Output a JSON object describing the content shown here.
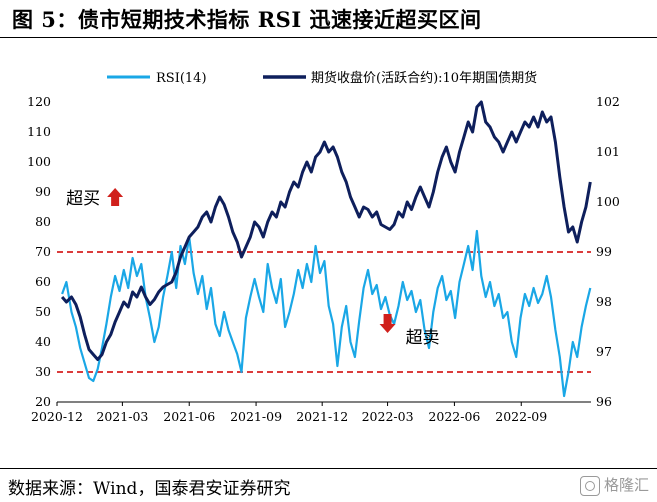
{
  "title": "图 5：债市短期技术指标 RSI 迅速接近超买区间",
  "source": "数据来源：Wind，国泰君安证券研究",
  "watermark": "格隆汇",
  "colors": {
    "rsi": "#1AA7E6",
    "futures": "#0E1F5C",
    "threshold": "#D62020",
    "arrow": "#D0201C"
  },
  "chart_data": {
    "type": "line",
    "x_ticks": [
      "2020-12",
      "2021-03",
      "2021-06",
      "2021-09",
      "2021-12",
      "2022-03",
      "2022-06",
      "2022-09"
    ],
    "x_range": [
      "2020-12-15",
      "2022-12-20"
    ],
    "left_axis": {
      "range": [
        20,
        120
      ],
      "ticks": [
        20,
        30,
        40,
        50,
        60,
        70,
        80,
        90,
        100,
        110,
        120
      ]
    },
    "right_axis": {
      "range": [
        96,
        102
      ],
      "ticks": [
        96,
        97,
        98,
        99,
        100,
        101,
        102
      ]
    },
    "thresholds": [
      70,
      30
    ],
    "legend_position": "top",
    "annotations": [
      {
        "text": "超买",
        "arrow": "up",
        "x": "2021-03-05",
        "y": 88
      },
      {
        "text": "超卖",
        "arrow": "down",
        "x": "2022-03-15",
        "y": 47
      }
    ],
    "series": [
      {
        "name": "RSI(14)",
        "axis": "left",
        "points": [
          [
            "2020-12-22",
            56
          ],
          [
            "2020-12-28",
            60
          ],
          [
            "2021-01-04",
            50
          ],
          [
            "2021-01-10",
            45
          ],
          [
            "2021-01-16",
            38
          ],
          [
            "2021-01-22",
            33
          ],
          [
            "2021-01-28",
            28
          ],
          [
            "2021-02-03",
            27
          ],
          [
            "2021-02-09",
            31
          ],
          [
            "2021-02-15",
            38
          ],
          [
            "2021-02-21",
            46
          ],
          [
            "2021-02-27",
            55
          ],
          [
            "2021-03-05",
            62
          ],
          [
            "2021-03-11",
            57
          ],
          [
            "2021-03-17",
            64
          ],
          [
            "2021-03-23",
            58
          ],
          [
            "2021-03-29",
            68
          ],
          [
            "2021-04-04",
            62
          ],
          [
            "2021-04-10",
            66
          ],
          [
            "2021-04-16",
            55
          ],
          [
            "2021-04-22",
            48
          ],
          [
            "2021-04-28",
            40
          ],
          [
            "2021-05-04",
            45
          ],
          [
            "2021-05-10",
            55
          ],
          [
            "2021-05-16",
            62
          ],
          [
            "2021-05-22",
            70
          ],
          [
            "2021-05-28",
            58
          ],
          [
            "2021-06-03",
            72
          ],
          [
            "2021-06-09",
            66
          ],
          [
            "2021-06-15",
            75
          ],
          [
            "2021-06-21",
            63
          ],
          [
            "2021-06-27",
            56
          ],
          [
            "2021-07-03",
            62
          ],
          [
            "2021-07-09",
            51
          ],
          [
            "2021-07-15",
            58
          ],
          [
            "2021-07-21",
            46
          ],
          [
            "2021-07-27",
            42
          ],
          [
            "2021-08-02",
            50
          ],
          [
            "2021-08-08",
            44
          ],
          [
            "2021-08-14",
            40
          ],
          [
            "2021-08-20",
            36
          ],
          [
            "2021-08-26",
            30
          ],
          [
            "2021-09-01",
            48
          ],
          [
            "2021-09-07",
            55
          ],
          [
            "2021-09-13",
            61
          ],
          [
            "2021-09-19",
            55
          ],
          [
            "2021-09-25",
            50
          ],
          [
            "2021-10-01",
            66
          ],
          [
            "2021-10-07",
            58
          ],
          [
            "2021-10-13",
            53
          ],
          [
            "2021-10-19",
            61
          ],
          [
            "2021-10-25",
            45
          ],
          [
            "2021-10-31",
            50
          ],
          [
            "2021-11-06",
            56
          ],
          [
            "2021-11-12",
            64
          ],
          [
            "2021-11-18",
            58
          ],
          [
            "2021-11-24",
            66
          ],
          [
            "2021-11-30",
            60
          ],
          [
            "2021-12-06",
            72
          ],
          [
            "2021-12-12",
            63
          ],
          [
            "2021-12-18",
            67
          ],
          [
            "2021-12-24",
            52
          ],
          [
            "2021-12-30",
            46
          ],
          [
            "2022-01-05",
            32
          ],
          [
            "2022-01-11",
            45
          ],
          [
            "2022-01-17",
            52
          ],
          [
            "2022-01-23",
            40
          ],
          [
            "2022-01-29",
            35
          ],
          [
            "2022-02-04",
            47
          ],
          [
            "2022-02-10",
            58
          ],
          [
            "2022-02-16",
            64
          ],
          [
            "2022-02-22",
            56
          ],
          [
            "2022-02-28",
            59
          ],
          [
            "2022-03-06",
            51
          ],
          [
            "2022-03-12",
            55
          ],
          [
            "2022-03-18",
            49
          ],
          [
            "2022-03-24",
            46
          ],
          [
            "2022-03-30",
            52
          ],
          [
            "2022-04-05",
            60
          ],
          [
            "2022-04-11",
            54
          ],
          [
            "2022-04-17",
            57
          ],
          [
            "2022-04-23",
            50
          ],
          [
            "2022-04-29",
            54
          ],
          [
            "2022-05-05",
            44
          ],
          [
            "2022-05-11",
            38
          ],
          [
            "2022-05-17",
            50
          ],
          [
            "2022-05-23",
            58
          ],
          [
            "2022-05-29",
            62
          ],
          [
            "2022-06-04",
            54
          ],
          [
            "2022-06-10",
            57
          ],
          [
            "2022-06-16",
            48
          ],
          [
            "2022-06-22",
            60
          ],
          [
            "2022-06-28",
            66
          ],
          [
            "2022-07-04",
            72
          ],
          [
            "2022-07-10",
            64
          ],
          [
            "2022-07-16",
            77
          ],
          [
            "2022-07-22",
            62
          ],
          [
            "2022-07-28",
            55
          ],
          [
            "2022-08-03",
            60
          ],
          [
            "2022-08-09",
            52
          ],
          [
            "2022-08-15",
            56
          ],
          [
            "2022-08-21",
            48
          ],
          [
            "2022-08-27",
            50
          ],
          [
            "2022-09-02",
            40
          ],
          [
            "2022-09-08",
            35
          ],
          [
            "2022-09-14",
            48
          ],
          [
            "2022-09-20",
            56
          ],
          [
            "2022-09-26",
            52
          ],
          [
            "2022-10-02",
            58
          ],
          [
            "2022-10-08",
            53
          ],
          [
            "2022-10-14",
            56
          ],
          [
            "2022-10-20",
            62
          ],
          [
            "2022-10-26",
            55
          ],
          [
            "2022-11-01",
            44
          ],
          [
            "2022-11-07",
            35
          ],
          [
            "2022-11-13",
            22
          ],
          [
            "2022-11-19",
            30
          ],
          [
            "2022-11-25",
            40
          ],
          [
            "2022-12-01",
            35
          ],
          [
            "2022-12-07",
            45
          ],
          [
            "2022-12-13",
            52
          ],
          [
            "2022-12-19",
            58
          ]
        ]
      },
      {
        "name": "期货收盘价(活跃合约):10年期国债期货",
        "axis": "right",
        "points": [
          [
            "2020-12-22",
            98.1
          ],
          [
            "2020-12-28",
            98.0
          ],
          [
            "2021-01-04",
            98.1
          ],
          [
            "2021-01-10",
            97.95
          ],
          [
            "2021-01-16",
            97.7
          ],
          [
            "2021-01-22",
            97.35
          ],
          [
            "2021-01-28",
            97.05
          ],
          [
            "2021-02-03",
            96.95
          ],
          [
            "2021-02-09",
            96.85
          ],
          [
            "2021-02-15",
            96.95
          ],
          [
            "2021-02-21",
            97.2
          ],
          [
            "2021-02-27",
            97.35
          ],
          [
            "2021-03-05",
            97.6
          ],
          [
            "2021-03-11",
            97.8
          ],
          [
            "2021-03-17",
            98.0
          ],
          [
            "2021-03-23",
            97.9
          ],
          [
            "2021-03-29",
            98.2
          ],
          [
            "2021-04-04",
            98.1
          ],
          [
            "2021-04-10",
            98.3
          ],
          [
            "2021-04-16",
            98.1
          ],
          [
            "2021-04-22",
            97.95
          ],
          [
            "2021-04-28",
            98.05
          ],
          [
            "2021-05-04",
            98.2
          ],
          [
            "2021-05-10",
            98.3
          ],
          [
            "2021-05-16",
            98.35
          ],
          [
            "2021-05-22",
            98.4
          ],
          [
            "2021-05-28",
            98.6
          ],
          [
            "2021-06-03",
            98.9
          ],
          [
            "2021-06-09",
            99.1
          ],
          [
            "2021-06-15",
            99.3
          ],
          [
            "2021-06-21",
            99.4
          ],
          [
            "2021-06-27",
            99.5
          ],
          [
            "2021-07-03",
            99.7
          ],
          [
            "2021-07-09",
            99.8
          ],
          [
            "2021-07-15",
            99.6
          ],
          [
            "2021-07-21",
            99.9
          ],
          [
            "2021-07-27",
            100.1
          ],
          [
            "2021-08-02",
            99.95
          ],
          [
            "2021-08-08",
            99.7
          ],
          [
            "2021-08-14",
            99.4
          ],
          [
            "2021-08-20",
            99.2
          ],
          [
            "2021-08-26",
            98.9
          ],
          [
            "2021-09-01",
            99.1
          ],
          [
            "2021-09-07",
            99.3
          ],
          [
            "2021-09-13",
            99.6
          ],
          [
            "2021-09-19",
            99.5
          ],
          [
            "2021-09-25",
            99.3
          ],
          [
            "2021-10-01",
            99.6
          ],
          [
            "2021-10-07",
            99.8
          ],
          [
            "2021-10-13",
            99.7
          ],
          [
            "2021-10-19",
            100.0
          ],
          [
            "2021-10-25",
            99.9
          ],
          [
            "2021-10-31",
            100.2
          ],
          [
            "2021-11-06",
            100.4
          ],
          [
            "2021-11-12",
            100.3
          ],
          [
            "2021-11-18",
            100.6
          ],
          [
            "2021-11-24",
            100.8
          ],
          [
            "2021-11-30",
            100.6
          ],
          [
            "2021-12-06",
            100.9
          ],
          [
            "2021-12-12",
            101.0
          ],
          [
            "2021-12-18",
            101.2
          ],
          [
            "2021-12-24",
            101.0
          ],
          [
            "2021-12-30",
            101.1
          ],
          [
            "2022-01-05",
            100.9
          ],
          [
            "2022-01-11",
            100.6
          ],
          [
            "2022-01-17",
            100.4
          ],
          [
            "2022-01-23",
            100.1
          ],
          [
            "2022-01-29",
            99.9
          ],
          [
            "2022-02-04",
            99.7
          ],
          [
            "2022-02-10",
            99.9
          ],
          [
            "2022-02-16",
            99.85
          ],
          [
            "2022-02-22",
            99.7
          ],
          [
            "2022-02-28",
            99.8
          ],
          [
            "2022-03-06",
            99.55
          ],
          [
            "2022-03-12",
            99.5
          ],
          [
            "2022-03-18",
            99.45
          ],
          [
            "2022-03-24",
            99.55
          ],
          [
            "2022-03-30",
            99.8
          ],
          [
            "2022-04-05",
            99.7
          ],
          [
            "2022-04-11",
            100.0
          ],
          [
            "2022-04-17",
            99.85
          ],
          [
            "2022-04-23",
            100.1
          ],
          [
            "2022-04-29",
            100.3
          ],
          [
            "2022-05-05",
            100.1
          ],
          [
            "2022-05-11",
            99.9
          ],
          [
            "2022-05-17",
            100.2
          ],
          [
            "2022-05-23",
            100.6
          ],
          [
            "2022-05-29",
            100.9
          ],
          [
            "2022-06-04",
            101.1
          ],
          [
            "2022-06-10",
            100.8
          ],
          [
            "2022-06-16",
            100.6
          ],
          [
            "2022-06-22",
            101.0
          ],
          [
            "2022-06-28",
            101.3
          ],
          [
            "2022-07-04",
            101.6
          ],
          [
            "2022-07-10",
            101.4
          ],
          [
            "2022-07-16",
            101.9
          ],
          [
            "2022-07-22",
            102.0
          ],
          [
            "2022-07-28",
            101.6
          ],
          [
            "2022-08-03",
            101.5
          ],
          [
            "2022-08-09",
            101.3
          ],
          [
            "2022-08-15",
            101.2
          ],
          [
            "2022-08-21",
            101.0
          ],
          [
            "2022-08-27",
            101.2
          ],
          [
            "2022-09-02",
            101.4
          ],
          [
            "2022-09-08",
            101.2
          ],
          [
            "2022-09-14",
            101.4
          ],
          [
            "2022-09-20",
            101.6
          ],
          [
            "2022-09-26",
            101.5
          ],
          [
            "2022-10-02",
            101.7
          ],
          [
            "2022-10-08",
            101.5
          ],
          [
            "2022-10-14",
            101.8
          ],
          [
            "2022-10-20",
            101.6
          ],
          [
            "2022-10-26",
            101.7
          ],
          [
            "2022-11-01",
            101.2
          ],
          [
            "2022-11-07",
            100.5
          ],
          [
            "2022-11-13",
            99.9
          ],
          [
            "2022-11-19",
            99.4
          ],
          [
            "2022-11-25",
            99.5
          ],
          [
            "2022-12-01",
            99.2
          ],
          [
            "2022-12-07",
            99.6
          ],
          [
            "2022-12-13",
            99.9
          ],
          [
            "2022-12-19",
            100.4
          ]
        ]
      }
    ]
  }
}
